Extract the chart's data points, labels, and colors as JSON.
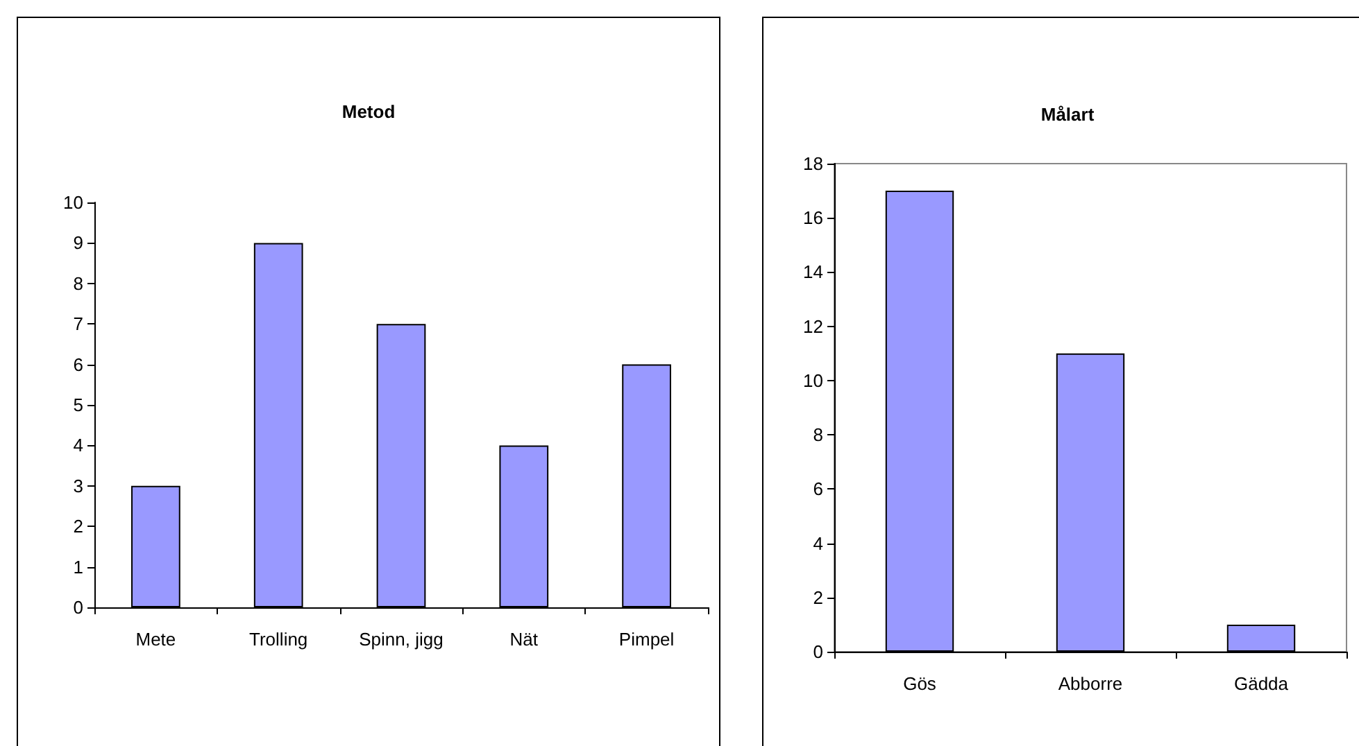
{
  "chart_data": [
    {
      "type": "bar",
      "title": "Metod",
      "categories": [
        "Mete",
        "Trolling",
        "Spinn, jigg",
        "Nät",
        "Pimpel"
      ],
      "values": [
        3,
        9,
        7,
        4,
        6
      ],
      "color": "#9999ff",
      "ylim": [
        0,
        10
      ],
      "yticks": [
        0,
        1,
        2,
        3,
        4,
        5,
        6,
        7,
        8,
        9,
        10
      ],
      "grid": false
    },
    {
      "type": "bar",
      "title": "Målart",
      "categories": [
        "Gös",
        "Abborre",
        "Gädda"
      ],
      "values": [
        17,
        11,
        1
      ],
      "color": "#9999ff",
      "ylim": [
        0,
        18
      ],
      "yticks": [
        0,
        2,
        4,
        6,
        8,
        10,
        12,
        14,
        16,
        18
      ],
      "grid": false
    }
  ]
}
